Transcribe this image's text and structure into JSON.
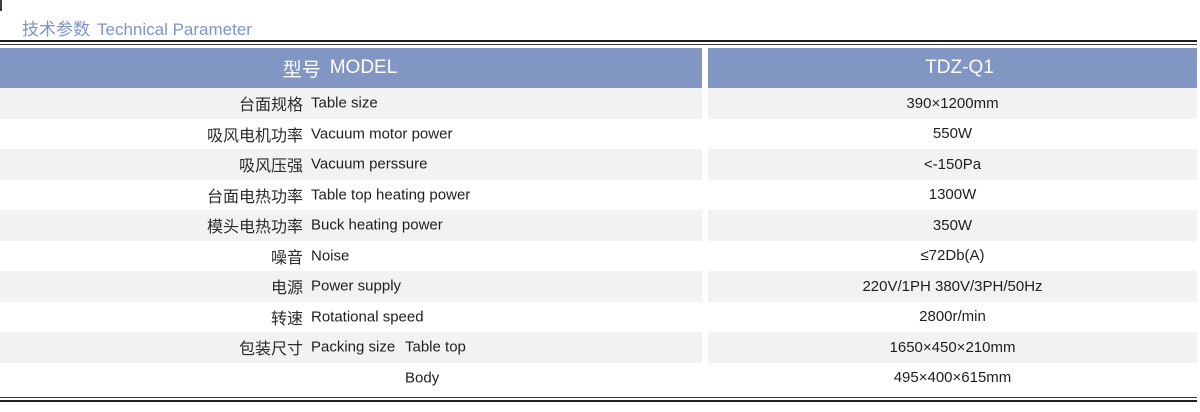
{
  "page": {
    "title_zh": "技术参数",
    "title_en": "Technical Parameter"
  },
  "table": {
    "header": {
      "model_zh": "型号",
      "model_en": "MODEL",
      "model_value": "TDZ-Q1"
    },
    "rows": [
      {
        "zh": "台面规格",
        "en": "Table size",
        "sub": "",
        "value": "390×1200mm"
      },
      {
        "zh": "吸风电机功率",
        "en": "Vacuum motor power",
        "sub": "",
        "value": "550W"
      },
      {
        "zh": "吸风压强",
        "en": "Vacuum perssure",
        "sub": "",
        "value": "<-150Pa"
      },
      {
        "zh": "台面电热功率",
        "en": "Table top heating power",
        "sub": "",
        "value": "1300W"
      },
      {
        "zh": "模头电热功率",
        "en": "Buck heating power",
        "sub": "",
        "value": "350W"
      },
      {
        "zh": "噪音",
        "en": "Noise",
        "sub": "",
        "value": "≤72Db(A)"
      },
      {
        "zh": "电源",
        "en": "Power supply",
        "sub": "",
        "value": "220V/1PH 380V/3PH/50Hz"
      },
      {
        "zh": "转速",
        "en": "Rotational speed",
        "sub": "",
        "value": "2800r/min"
      },
      {
        "zh": "包装尺寸",
        "en": "Packing size",
        "sub": "Table top",
        "value": "1650×450×210mm"
      },
      {
        "zh": "",
        "en": "",
        "sub": "Body",
        "value": "495×400×615mm"
      }
    ]
  },
  "colors": {
    "header_bg": "#8196c2",
    "title_text": "#7d95c5",
    "row_alt_bg": "#f2f2f3",
    "rule": "#1f1f1f"
  }
}
